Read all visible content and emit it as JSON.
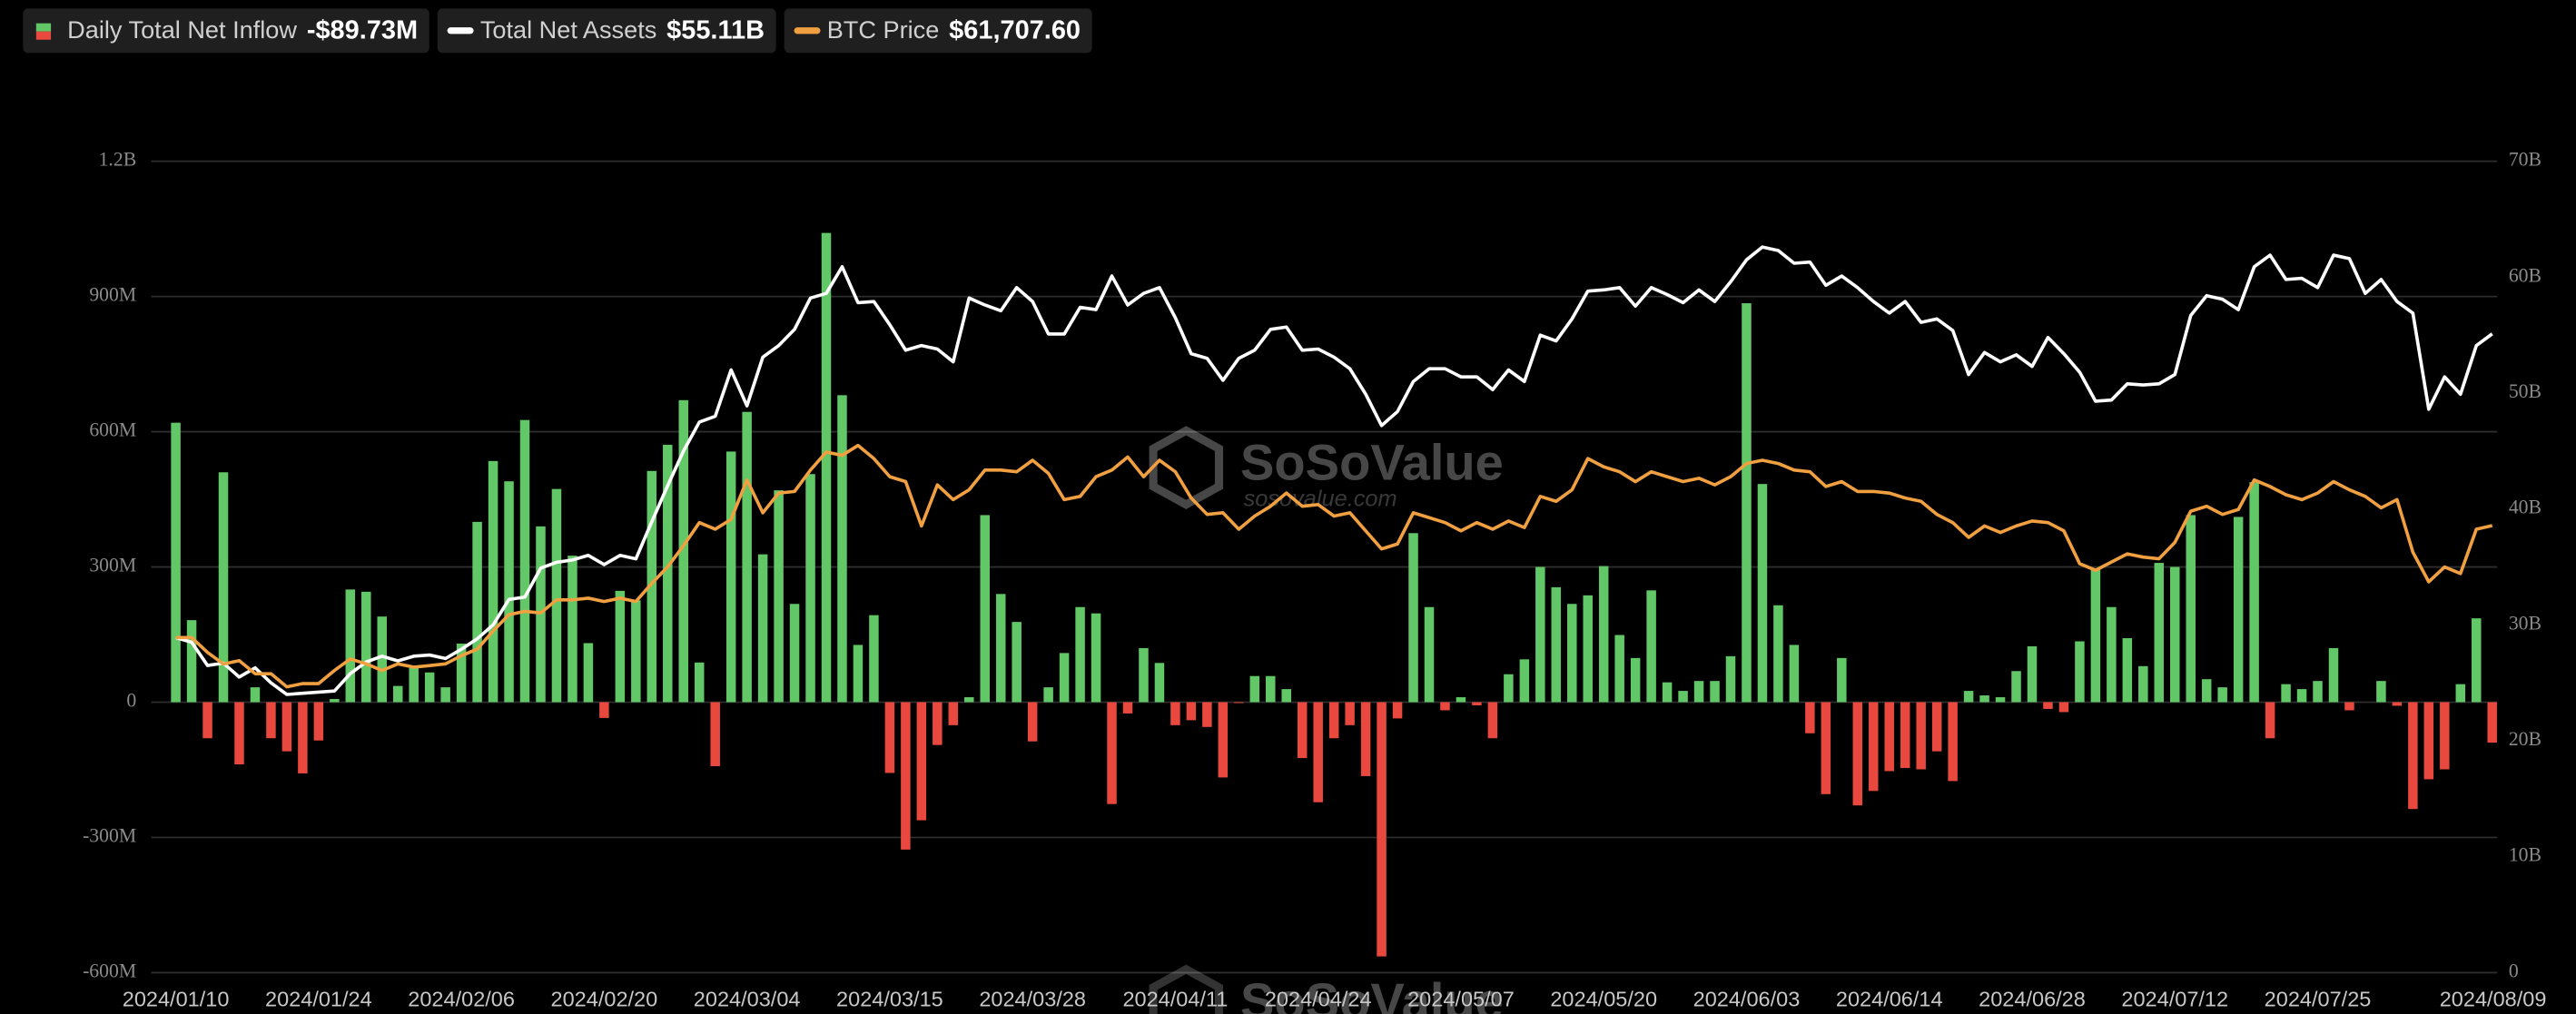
{
  "chart_data": {
    "type": "bar-line",
    "watermark": "SoSoValue",
    "watermark_url": "sosovalue.com",
    "categories": [
      "2024/01/10",
      null,
      null,
      null,
      null,
      null,
      null,
      null,
      null,
      "2024/01/24",
      null,
      null,
      null,
      null,
      null,
      null,
      null,
      null,
      "2024/02/06",
      null,
      null,
      null,
      null,
      null,
      null,
      null,
      null,
      "2024/02/20",
      null,
      null,
      null,
      null,
      null,
      null,
      null,
      null,
      "2024/03/04",
      null,
      null,
      null,
      null,
      null,
      null,
      null,
      null,
      "2024/03/15",
      null,
      null,
      null,
      null,
      null,
      null,
      null,
      null,
      "2024/03/28",
      null,
      null,
      null,
      null,
      null,
      null,
      null,
      null,
      "2024/04/11",
      null,
      null,
      null,
      null,
      null,
      null,
      null,
      null,
      "2024/04/24",
      null,
      null,
      null,
      null,
      null,
      null,
      null,
      null,
      "2024/05/07",
      null,
      null,
      null,
      null,
      null,
      null,
      null,
      null,
      "2024/05/20",
      null,
      null,
      null,
      null,
      null,
      null,
      null,
      null,
      "2024/06/03",
      null,
      null,
      null,
      null,
      null,
      null,
      null,
      null,
      "2024/06/14",
      null,
      null,
      null,
      null,
      null,
      null,
      null,
      null,
      "2024/06/28",
      null,
      null,
      null,
      null,
      null,
      null,
      null,
      null,
      "2024/07/12",
      null,
      null,
      null,
      null,
      null,
      null,
      null,
      null,
      "2024/07/25",
      null,
      null,
      null,
      null,
      null,
      null,
      null,
      null,
      null,
      null,
      "2024/08/09"
    ],
    "series": [
      {
        "name": "Daily Total Net Inflow",
        "latest_label": "-$89.73M",
        "type": "bar",
        "color": "#62c867",
        "negative_color": "#e8483e",
        "values": [
          620,
          182,
          -80,
          510,
          -138,
          33,
          -80,
          -109,
          -158,
          -85,
          7,
          250,
          245,
          190,
          36,
          76,
          66,
          33,
          130,
          400,
          535,
          490,
          626,
          390,
          473,
          325,
          131,
          -35,
          247,
          226,
          513,
          571,
          670,
          88,
          -142,
          556,
          644,
          328,
          470,
          218,
          506,
          1041,
          681,
          127,
          193,
          -157,
          -327,
          -262,
          -95,
          -51,
          11,
          415,
          240,
          178,
          -87,
          33,
          109,
          211,
          197,
          -226,
          -25,
          120,
          87,
          -51,
          -40,
          -55,
          -167,
          -2,
          58,
          58,
          29,
          -124,
          -222,
          -80,
          -51,
          -164,
          -564,
          -36,
          375,
          211,
          -18,
          11,
          -7,
          -80,
          62,
          95,
          300,
          255,
          218,
          237,
          302,
          149,
          98,
          248,
          44,
          25,
          47,
          47,
          102,
          885,
          484,
          215,
          127,
          -69,
          -204,
          98,
          -229,
          -197,
          -153,
          -146,
          -149,
          -109,
          -175,
          25,
          15,
          11,
          69,
          124,
          -15,
          -22,
          135,
          295,
          211,
          142,
          80,
          309,
          300,
          415,
          51,
          33,
          411,
          488,
          -80,
          40,
          29,
          47,
          120,
          -18,
          0,
          47,
          -8,
          -237,
          -171,
          -149,
          40,
          186,
          -89.73
        ]
      },
      {
        "name": "Total Net Assets",
        "latest_label": "$55.11B",
        "type": "line",
        "axis": "y2",
        "color": "#ffffff",
        "values": [
          28.9,
          28.5,
          26.5,
          26.7,
          25.5,
          26.3,
          25.0,
          24.0,
          24.1,
          24.2,
          24.3,
          25.8,
          26.8,
          27.3,
          26.9,
          27.3,
          27.4,
          27.1,
          27.9,
          28.8,
          30.0,
          32.2,
          32.4,
          34.9,
          35.4,
          35.6,
          36.0,
          35.2,
          36.0,
          35.7,
          38.9,
          42.0,
          45.0,
          47.5,
          48.0,
          52.0,
          48.9,
          53.1,
          54.1,
          55.5,
          58.2,
          58.6,
          60.9,
          57.8,
          57.9,
          55.9,
          53.7,
          54.1,
          53.8,
          52.7,
          58.2,
          57.6,
          57.1,
          59.1,
          57.9,
          55.1,
          55.1,
          57.4,
          57.2,
          60.1,
          57.6,
          58.6,
          59.1,
          56.5,
          53.4,
          53.0,
          51.1,
          53.0,
          53.7,
          55.5,
          55.7,
          53.7,
          53.8,
          53.1,
          52.1,
          49.9,
          47.2,
          48.4,
          51.0,
          52.1,
          52.1,
          51.4,
          51.4,
          50.3,
          52.0,
          51.0,
          55.0,
          54.5,
          56.4,
          58.8,
          58.9,
          59.1,
          57.5,
          59.1,
          58.5,
          57.8,
          58.9,
          57.9,
          59.6,
          61.5,
          62.6,
          62.3,
          61.2,
          61.3,
          59.3,
          60.1,
          59.1,
          57.9,
          56.9,
          57.9,
          56.1,
          56.4,
          55.4,
          51.6,
          53.5,
          52.7,
          53.3,
          52.3,
          54.8,
          53.4,
          51.8,
          49.3,
          49.4,
          50.8,
          50.7,
          50.8,
          51.6,
          56.7,
          58.4,
          58.1,
          57.2,
          60.9,
          61.9,
          59.8,
          59.9,
          59.1,
          61.9,
          61.6,
          58.6,
          59.8,
          57.9,
          56.9,
          48.6,
          51.4,
          49.9,
          54.1,
          55.11
        ]
      },
      {
        "name": "BTC Price",
        "latest_label": "$61,707.60",
        "type": "line",
        "axis": "y3",
        "color": "#f0a040",
        "values": [
          46250,
          46250,
          44200,
          42600,
          43070,
          41260,
          41260,
          39450,
          39900,
          39900,
          41710,
          43300,
          42620,
          41710,
          42620,
          42170,
          42390,
          42620,
          43750,
          44660,
          47150,
          49420,
          49870,
          49650,
          51460,
          51460,
          51690,
          51230,
          51690,
          51230,
          53730,
          56000,
          58940,
          62120,
          61210,
          62570,
          68010,
          63480,
          66200,
          66420,
          69370,
          71860,
          71410,
          72770,
          70960,
          68460,
          67780,
          61660,
          67330,
          65290,
          66650,
          69370,
          69370,
          69140,
          70730,
          68920,
          65290,
          65740,
          68460,
          69370,
          71180,
          68460,
          70730,
          69140,
          65510,
          63250,
          63480,
          61210,
          63020,
          64380,
          66200,
          64380,
          64610,
          63020,
          63480,
          60980,
          58490,
          59170,
          63480,
          62800,
          62120,
          60980,
          62120,
          61210,
          62340,
          61440,
          65740,
          65060,
          66650,
          70960,
          69820,
          69140,
          67780,
          69140,
          68460,
          67780,
          68240,
          67330,
          68460,
          70280,
          70730,
          70280,
          69370,
          69140,
          67100,
          67780,
          66420,
          66420,
          66200,
          65510,
          65060,
          63250,
          62120,
          60080,
          61660,
          60760,
          61660,
          62340,
          62120,
          60980,
          56450,
          55540,
          56680,
          57810,
          57360,
          57130,
          59390,
          63700,
          64380,
          63250,
          63930,
          68010,
          67100,
          65970,
          65290,
          66200,
          67780,
          66650,
          65740,
          64160,
          65290,
          58040,
          53950,
          56000,
          55090,
          61210,
          61707.6
        ]
      }
    ],
    "ylim": [
      -600,
      1200
    ],
    "yticks": [
      {
        "value": -600,
        "label": "-600M"
      },
      {
        "value": -300,
        "label": "-300M"
      },
      0,
      {
        "value": 300,
        "label": "300M"
      },
      {
        "value": 600,
        "label": "600M"
      },
      {
        "value": 900,
        "label": "900M"
      },
      {
        "value": 1200,
        "label": "1.2B"
      }
    ],
    "y2lim": [
      0,
      70
    ],
    "y2ticks": [
      0,
      {
        "value": 10,
        "label": "10B"
      },
      {
        "value": 20,
        "label": "20B"
      },
      {
        "value": 30,
        "label": "30B"
      },
      {
        "value": 40,
        "label": "40B"
      },
      {
        "value": 50,
        "label": "50B"
      },
      {
        "value": 60,
        "label": "60B"
      },
      {
        "value": 70,
        "label": "70B"
      }
    ],
    "y3lim": [
      0,
      112000
    ],
    "grid": true
  }
}
